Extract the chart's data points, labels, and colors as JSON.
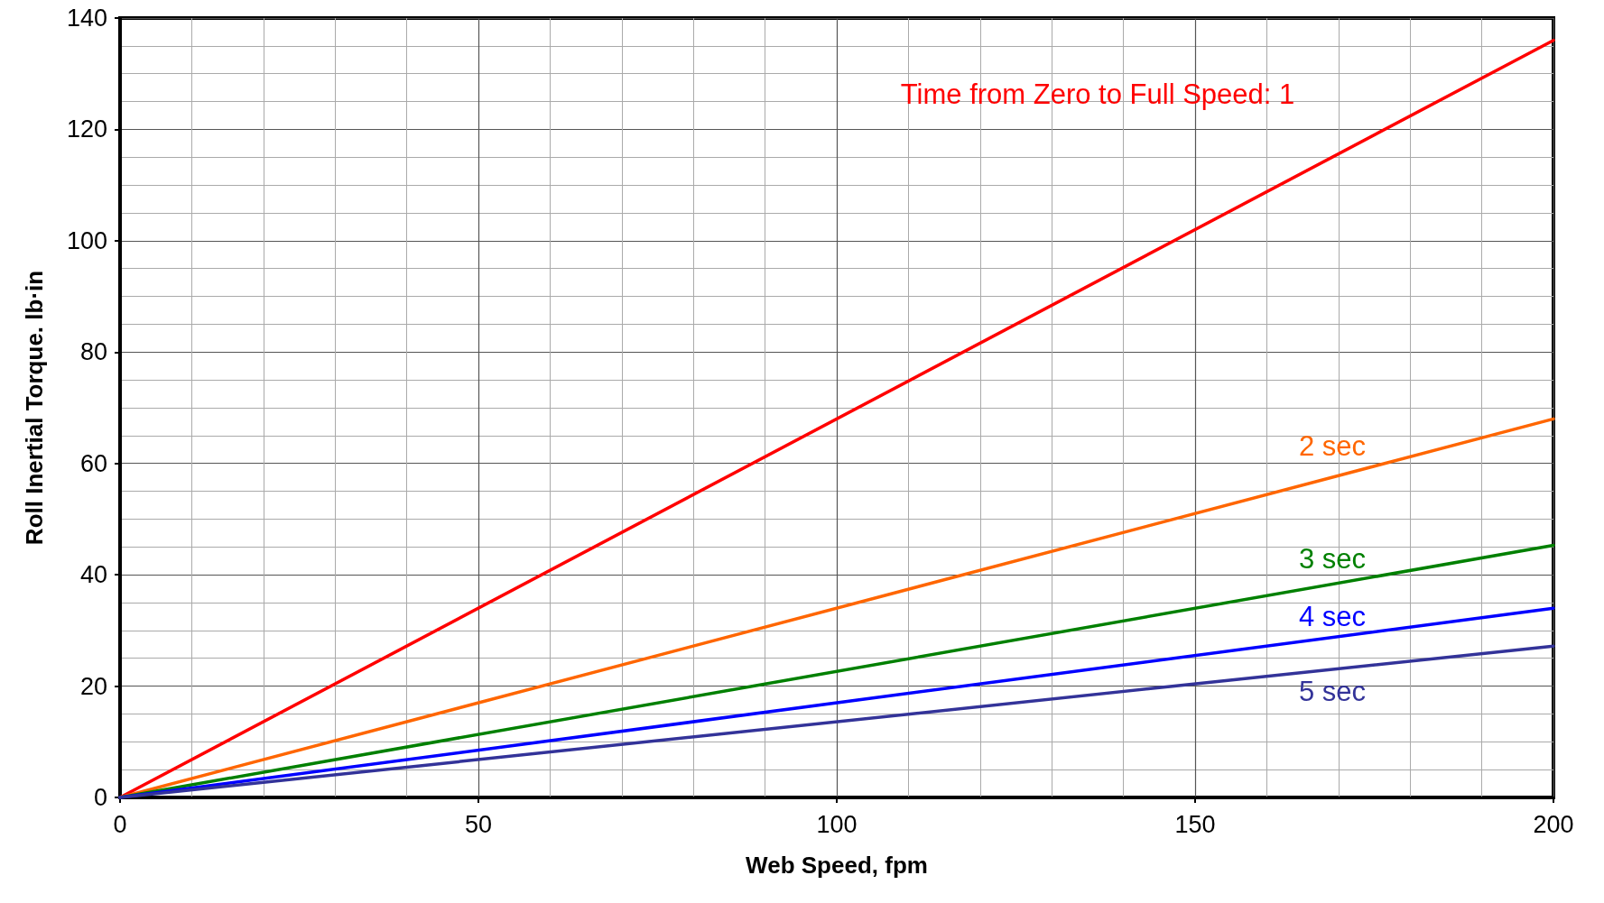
{
  "chart_data": {
    "type": "line",
    "xlabel": "Web Speed, fpm",
    "ylabel": "Roll Inertial Torque. lb·in",
    "x": [
      0,
      200
    ],
    "series": [
      {
        "name": "Time from Zero to Full Speed: 1",
        "color": "#ff0000",
        "values": [
          0,
          136
        ]
      },
      {
        "name": "2 sec",
        "color": "#ff6600",
        "values": [
          0,
          68
        ]
      },
      {
        "name": "3 sec",
        "color": "#008000",
        "values": [
          0,
          45.3
        ]
      },
      {
        "name": "4 sec",
        "color": "#0000ff",
        "values": [
          0,
          34
        ]
      },
      {
        "name": "5 sec",
        "color": "#333399",
        "values": [
          0,
          27.2
        ]
      }
    ],
    "xlim": [
      0,
      200
    ],
    "xticks": [
      0,
      50,
      100,
      150,
      200
    ],
    "ylim": [
      0,
      140
    ],
    "yticks": [
      0,
      20,
      40,
      60,
      80,
      100,
      120,
      140
    ],
    "grid": true,
    "legend": false,
    "marker": "none",
    "line_style": "solid"
  }
}
